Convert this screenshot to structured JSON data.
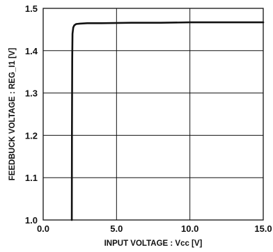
{
  "chart_data": {
    "type": "line",
    "title": "",
    "xlabel": "INPUT VOLTAGE : Vcc [V]",
    "ylabel": "FEEDBUCK VOLTAGE : REG_I1 [V]",
    "xlim": [
      0,
      15
    ],
    "ylim": [
      1.0,
      1.5
    ],
    "x_ticks": [
      0,
      5,
      10,
      15
    ],
    "x_tick_labels": [
      "0.0",
      "5.0",
      "10.0",
      "15.0"
    ],
    "y_ticks": [
      1.0,
      1.1,
      1.2,
      1.3,
      1.4,
      1.5
    ],
    "y_tick_labels": [
      "1.0",
      "1.1",
      "1.2",
      "1.3",
      "1.4",
      "1.5"
    ],
    "grid": true,
    "line_color": "#111111",
    "series": [
      {
        "x": [
          1.95,
          1.96,
          1.98,
          2.0,
          2.05,
          2.12,
          2.25,
          2.5,
          3.0,
          4.0,
          6.0,
          8.0,
          10.0,
          12.0,
          15.0
        ],
        "y": [
          1.0,
          1.2,
          1.38,
          1.44,
          1.455,
          1.46,
          1.463,
          1.464,
          1.465,
          1.465,
          1.466,
          1.466,
          1.467,
          1.467,
          1.467
        ]
      }
    ]
  }
}
